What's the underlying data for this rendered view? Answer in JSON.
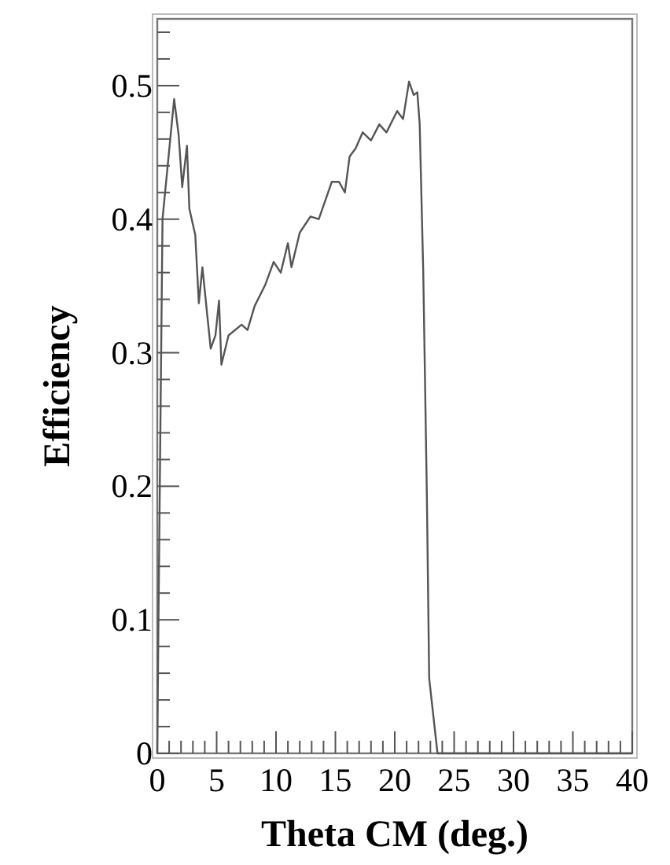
{
  "chart_data": {
    "type": "line",
    "xlabel": "Theta CM (deg.)",
    "ylabel": "Efficiency",
    "xlim": [
      0,
      40
    ],
    "ylim": [
      0,
      0.55
    ],
    "xticks": [
      0,
      {
        "value": 1,
        "label": null
      },
      {
        "value": 2,
        "label": null
      },
      {
        "value": 3,
        "label": null
      },
      {
        "value": 4,
        "label": null
      },
      5,
      {
        "value": 6,
        "label": null
      },
      {
        "value": 7,
        "label": null
      },
      {
        "value": 8,
        "label": null
      },
      {
        "value": 9,
        "label": null
      },
      10,
      {
        "value": 11,
        "label": null
      },
      {
        "value": 12,
        "label": null
      },
      {
        "value": 13,
        "label": null
      },
      {
        "value": 14,
        "label": null
      },
      15,
      {
        "value": 16,
        "label": null
      },
      {
        "value": 17,
        "label": null
      },
      {
        "value": 18,
        "label": null
      },
      {
        "value": 19,
        "label": null
      },
      20,
      {
        "value": 21,
        "label": null
      },
      {
        "value": 22,
        "label": null
      },
      {
        "value": 23,
        "label": null
      },
      {
        "value": 24,
        "label": null
      },
      25,
      {
        "value": 26,
        "label": null
      },
      {
        "value": 27,
        "label": null
      },
      {
        "value": 28,
        "label": null
      },
      {
        "value": 29,
        "label": null
      },
      30,
      {
        "value": 31,
        "label": null
      },
      {
        "value": 32,
        "label": null
      },
      {
        "value": 33,
        "label": null
      },
      {
        "value": 34,
        "label": null
      },
      35,
      {
        "value": 36,
        "label": null
      },
      {
        "value": 37,
        "label": null
      },
      {
        "value": 38,
        "label": null
      },
      {
        "value": 39,
        "label": null
      },
      40
    ],
    "yticks": [
      0,
      {
        "value": 0.02,
        "label": null
      },
      {
        "value": 0.04,
        "label": null
      },
      {
        "value": 0.06,
        "label": null
      },
      {
        "value": 0.08,
        "label": null
      },
      0.1,
      {
        "value": 0.12,
        "label": null
      },
      {
        "value": 0.14,
        "label": null
      },
      {
        "value": 0.16,
        "label": null
      },
      {
        "value": 0.18,
        "label": null
      },
      0.2,
      {
        "value": 0.22,
        "label": null
      },
      {
        "value": 0.24,
        "label": null
      },
      {
        "value": 0.26,
        "label": null
      },
      {
        "value": 0.28,
        "label": null
      },
      0.3,
      {
        "value": 0.32,
        "label": null
      },
      {
        "value": 0.34,
        "label": null
      },
      {
        "value": 0.36,
        "label": null
      },
      {
        "value": 0.38,
        "label": null
      },
      0.4,
      {
        "value": 0.42,
        "label": null
      },
      {
        "value": 0.44,
        "label": null
      },
      {
        "value": 0.46,
        "label": null
      },
      {
        "value": 0.48,
        "label": null
      },
      0.5,
      {
        "value": 0.52,
        "label": null
      },
      {
        "value": 0.54,
        "label": null
      }
    ],
    "grid": false,
    "marker": "none",
    "line_style": "solid",
    "x": [
      0,
      0.1,
      0.44,
      1.42,
      1.8,
      2.1,
      2.5,
      2.7,
      3.2,
      3.5,
      3.8,
      4.2,
      4.5,
      4.9,
      5.2,
      5.4,
      6.0,
      7.1,
      7.6,
      8.2,
      9.1,
      9.8,
      10.4,
      11.0,
      11.3,
      12.0,
      12.9,
      13.6,
      14.7,
      15.3,
      15.8,
      16.2,
      16.7,
      17.3,
      18.0,
      18.7,
      19.3,
      20.2,
      20.7,
      21.2,
      21.6,
      21.9,
      22.1,
      22.4,
      22.7,
      22.9,
      23.6,
      40
    ],
    "series": [
      {
        "color": "#555555",
        "values": [
          0,
          0.1,
          0.4,
          0.49,
          0.463,
          0.424,
          0.455,
          0.408,
          0.388,
          0.337,
          0.364,
          0.329,
          0.303,
          0.313,
          0.339,
          0.291,
          0.313,
          0.321,
          0.317,
          0.335,
          0.351,
          0.368,
          0.36,
          0.382,
          0.364,
          0.39,
          0.402,
          0.4,
          0.428,
          0.428,
          0.42,
          0.447,
          0.453,
          0.465,
          0.459,
          0.471,
          0.465,
          0.481,
          0.475,
          0.503,
          0.493,
          0.495,
          0.471,
          0.36,
          0.195,
          0.056,
          0,
          0
        ]
      }
    ]
  }
}
